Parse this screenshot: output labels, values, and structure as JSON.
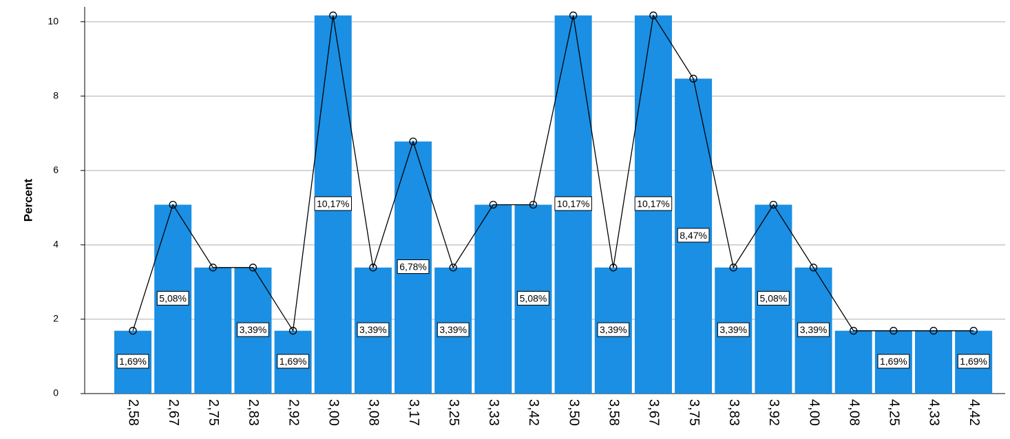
{
  "chart_data": {
    "type": "bar",
    "y_label": "Percent",
    "categories": [
      "2,58",
      "2,67",
      "2,75",
      "2,83",
      "2,92",
      "3,00",
      "3,08",
      "3,17",
      "3,25",
      "3,33",
      "3,42",
      "3,50",
      "3,58",
      "3,67",
      "3,75",
      "3,83",
      "3,92",
      "4,00",
      "4,08",
      "4,25",
      "4,33",
      "4,42"
    ],
    "values": [
      1.69,
      5.08,
      3.39,
      3.39,
      1.69,
      10.17,
      3.39,
      6.78,
      3.39,
      5.08,
      5.08,
      10.17,
      3.39,
      10.17,
      8.47,
      3.39,
      5.08,
      3.39,
      1.69,
      1.69,
      1.69,
      1.69
    ],
    "value_labels": [
      "1,69%",
      "5,08%",
      null,
      "3,39%",
      "1,69%",
      "10,17%",
      "3,39%",
      "6,78%",
      "3,39%",
      null,
      "5,08%",
      "10,17%",
      "3,39%",
      "10,17%",
      "8,47%",
      "3,39%",
      "5,08%",
      "3,39%",
      null,
      "1,69%",
      null,
      "1,69%"
    ],
    "color": "#1a8fe3",
    "overlay": "line",
    "line_color": "#000000",
    "ylim": [
      0,
      10.4
    ],
    "yticks": [
      0,
      2,
      4,
      6,
      8,
      10
    ],
    "grid": true
  }
}
